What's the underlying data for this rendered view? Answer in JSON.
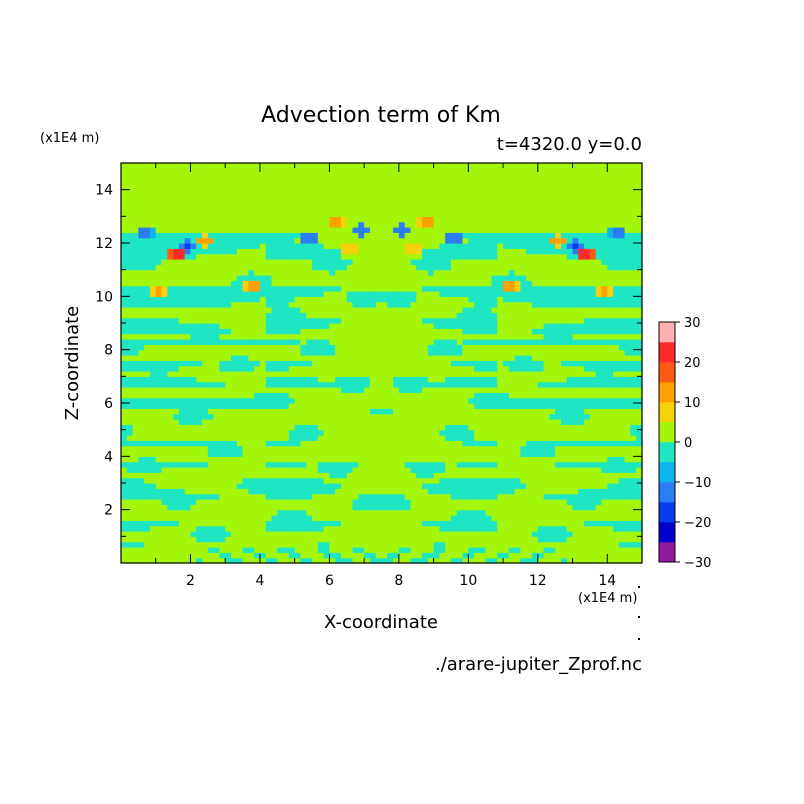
{
  "chart_data": {
    "type": "heatmap",
    "title": "Advection term of Km",
    "subtitle": "t=4320.0 y=0.0",
    "xlabel": "X-coordinate",
    "ylabel": "Z-coordinate",
    "x_unit": "(x1E4 m)",
    "y_unit": "(x1E4 m)",
    "source_file": "./arare-jupiter_Zprof.nc",
    "xlim": [
      0,
      15
    ],
    "ylim": [
      0,
      15
    ],
    "x_ticks": [
      "2",
      "4",
      "6",
      "8",
      "10",
      "12",
      "14"
    ],
    "y_ticks": [
      "2",
      "4",
      "6",
      "8",
      "10",
      "12",
      "14"
    ],
    "colorbar": {
      "levels": [
        -30,
        -25,
        -20,
        -15,
        -10,
        -5,
        0,
        5,
        10,
        15,
        20,
        25,
        30
      ],
      "colors": [
        "#8e1a9e",
        "#0000cc",
        "#0a3cf0",
        "#2b7df5",
        "#0db4f0",
        "#1ee6c3",
        "#a3f50a",
        "#f5d20a",
        "#ffa000",
        "#ff5a14",
        "#ff2b2b",
        "#ffb0b0"
      ],
      "tick_labels": [
        "30",
        "20",
        "10",
        "0",
        "−10",
        "−20",
        "−30"
      ]
    },
    "field_description": "Mirror-symmetric about x=7.5; background near 0 (yellow-green), horizontal negative bands (cyan) between z=1-10, strong positive/negative cells near z=10-13."
  }
}
